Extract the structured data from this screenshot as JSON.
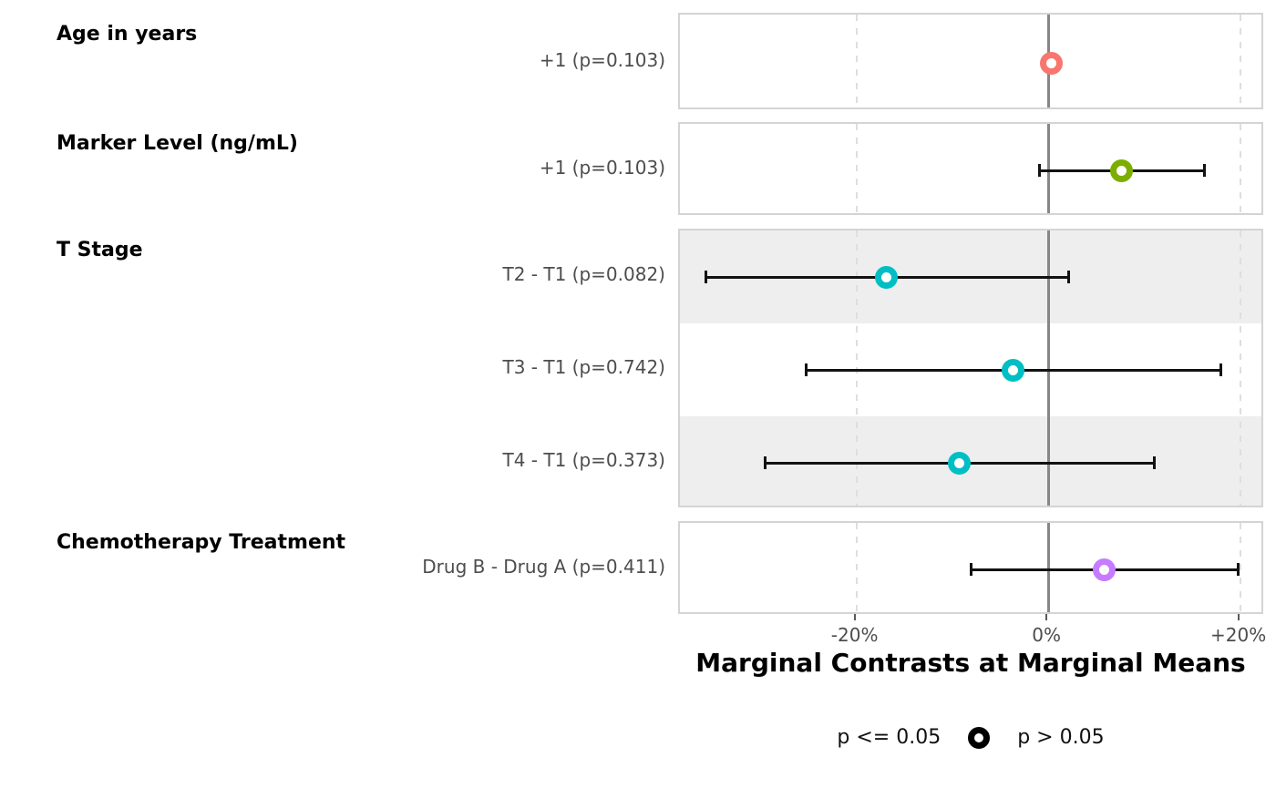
{
  "chart_data": {
    "type": "forest-dot-ci",
    "xlabel": "Marginal Contrasts at Marginal Means",
    "x_unit": "percent",
    "xlim": [
      -38.4,
      22.6
    ],
    "x_ticks": [
      {
        "value": -20,
        "label": "-20%"
      },
      {
        "value": 0,
        "label": "0%"
      },
      {
        "value": 20,
        "label": "+20%"
      }
    ],
    "zero_line_value": 0,
    "dashed_gridline_values": [
      -20,
      20
    ],
    "groups": [
      {
        "title": "Age in years",
        "color": "#F8766D",
        "rows": [
          {
            "label": "+1 (p=0.103)",
            "p": 0.103,
            "estimate": 0.35,
            "ci_low": null,
            "ci_high": null,
            "stripe": false
          }
        ]
      },
      {
        "title": "Marker Level (ng/mL)",
        "color": "#7CAE00",
        "rows": [
          {
            "label": "+1 (p=0.103)",
            "p": 0.103,
            "estimate": 7.6,
            "ci_low": -1.0,
            "ci_high": 16.3,
            "stripe": false
          }
        ]
      },
      {
        "title": "T Stage",
        "color": "#00BFC4",
        "rows": [
          {
            "label": "T2 - T1 (p=0.082)",
            "p": 0.082,
            "estimate": -16.9,
            "ci_low": -35.7,
            "ci_high": 2.2,
            "stripe": true
          },
          {
            "label": "T3 - T1 (p=0.742)",
            "p": 0.742,
            "estimate": -3.7,
            "ci_low": -25.3,
            "ci_high": 18.0,
            "stripe": false
          },
          {
            "label": "T4 - T1 (p=0.373)",
            "p": 0.373,
            "estimate": -9.3,
            "ci_low": -29.6,
            "ci_high": 11.1,
            "stripe": true
          }
        ]
      },
      {
        "title": "Chemotherapy Treatment",
        "color": "#C77CFF",
        "rows": [
          {
            "label": "Drug B - Drug A (p=0.411)",
            "p": 0.411,
            "estimate": 5.8,
            "ci_low": -8.1,
            "ci_high": 19.8,
            "stripe": false
          }
        ]
      }
    ]
  },
  "legend": {
    "items": [
      {
        "label": "p <= 0.05",
        "glyph": "none"
      },
      {
        "label": "p > 0.05",
        "glyph": "open-circle"
      }
    ]
  },
  "colors": {
    "age_point": "#F8766D",
    "marker_point": "#7CAE00",
    "t_stage_point": "#00BFC4",
    "chemo_point": "#C77CFF",
    "zero_line": "#878787",
    "dashed_grid": "#DEDEDE",
    "stripe_fill": "#EEEEEE",
    "panel_border": "#D4D4D4",
    "error_bar": "#121212",
    "secondary_text": "#4D4D4D"
  }
}
